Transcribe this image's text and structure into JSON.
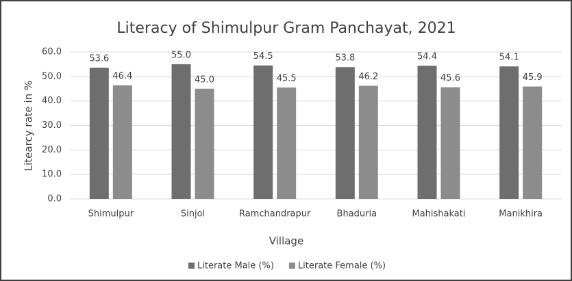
{
  "chart_data": {
    "type": "bar",
    "title": "Literacy of Shimulpur Gram Panchayat, 2021",
    "x_label": "Village",
    "y_label": "Litearcy rate in %",
    "categories": [
      "Shimulpur",
      "Sinjol",
      "Ramchandrapur",
      "Bhaduria",
      "Mahishakati",
      "Manikhira"
    ],
    "series": [
      {
        "name": "Literate Male (%)",
        "color": "#6e6e6e",
        "values": [
          53.6,
          55.0,
          54.5,
          53.8,
          54.4,
          54.1
        ],
        "value_labels": [
          "53.6",
          "55.0",
          "54.5",
          "53.8",
          "54.4",
          "54.1"
        ]
      },
      {
        "name": "Literate Female (%)",
        "color": "#8c8c8c",
        "values": [
          46.4,
          45.0,
          45.5,
          46.2,
          45.6,
          45.9
        ],
        "value_labels": [
          "46.4",
          "45.0",
          "45.5",
          "46.2",
          "45.6",
          "45.9"
        ]
      }
    ],
    "ylim": [
      0,
      60
    ],
    "yticks": [
      {
        "value": 0,
        "label": "0.0"
      },
      {
        "value": 10,
        "label": "10.0"
      },
      {
        "value": 20,
        "label": "20.0"
      },
      {
        "value": 30,
        "label": "30.0"
      },
      {
        "value": 40,
        "label": "40.0"
      },
      {
        "value": 50,
        "label": "50.0"
      },
      {
        "value": 60,
        "label": "60.0"
      }
    ],
    "grid": true,
    "legend": "bottom"
  }
}
